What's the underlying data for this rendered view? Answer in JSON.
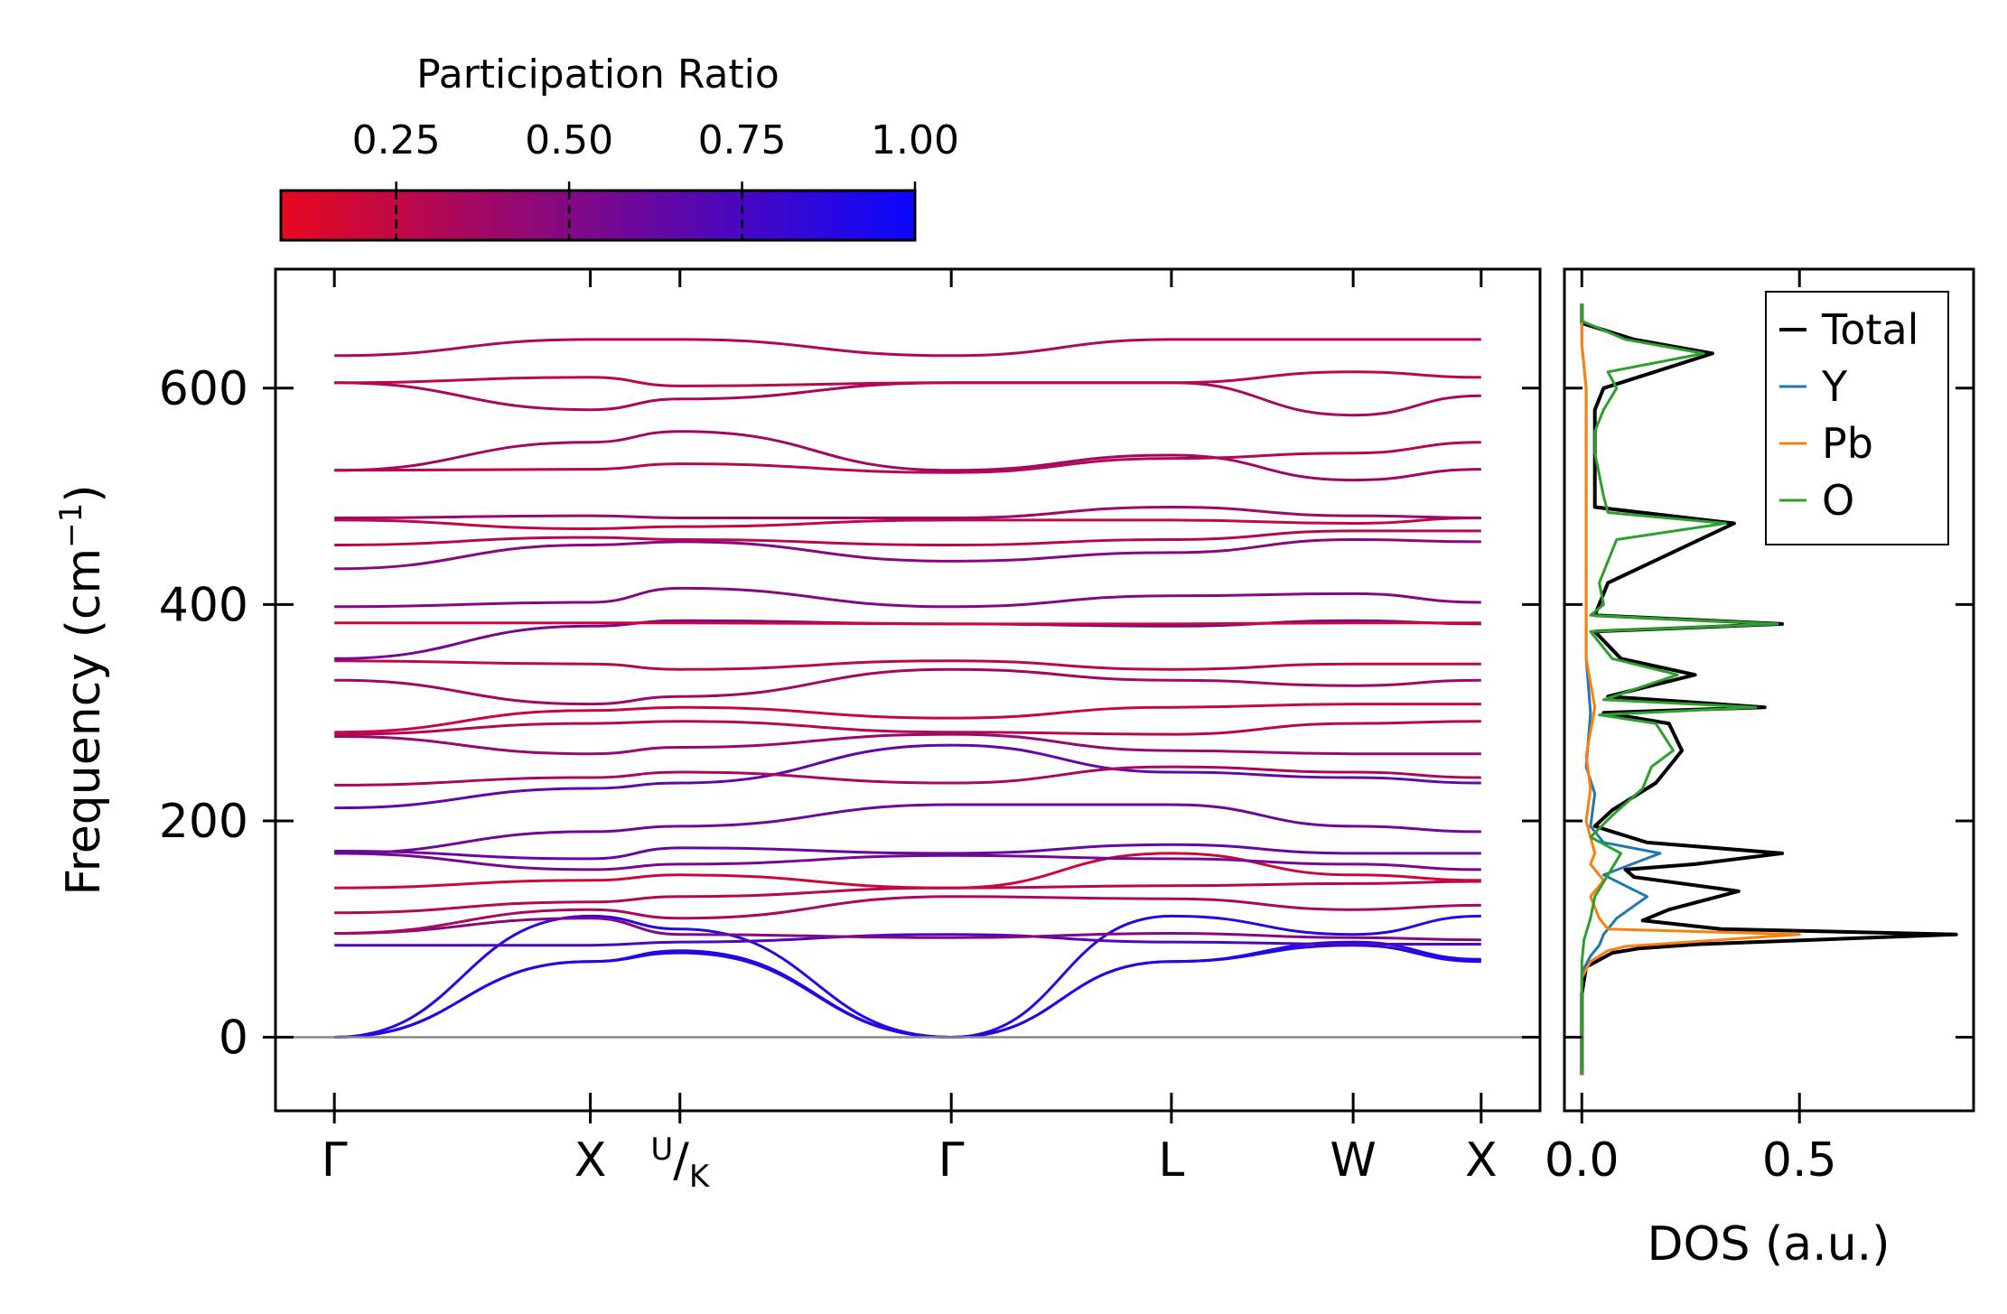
{
  "colorbar": {
    "title": "Participation Ratio",
    "ticks": [
      0.25,
      0.5,
      0.75,
      1.0
    ],
    "tick_labels": [
      "0.25",
      "0.50",
      "0.75",
      "1.00"
    ],
    "range": [
      0.0833,
      1.0
    ],
    "colors": {
      "low": "#e8081e",
      "high": "#0b07ff"
    }
  },
  "chart_data": [
    {
      "type": "line",
      "name": "phonon-band-structure",
      "ylabel": "Frequency (cm",
      "ylabel_sup": "−1",
      "ylabel_close": ")",
      "ylim": [
        -68,
        710
      ],
      "yticks": [
        0,
        200,
        400,
        600
      ],
      "ytick_labels": [
        "0",
        "200",
        "400",
        "600"
      ],
      "path_labels": [
        "Γ",
        "X",
        "U/K",
        "Γ",
        "L",
        "W",
        "X"
      ],
      "path_positions": [
        0,
        1,
        1.35,
        2.41,
        3.27,
        3.98,
        4.48
      ],
      "xlim": [
        -0.23,
        4.71
      ],
      "zero_line": 0,
      "branches": [
        {
          "freq": [
            0,
            70,
            78,
            0,
            70,
            85,
            70
          ],
          "pr": 0.9
        },
        {
          "freq": [
            0,
            70,
            80,
            0,
            70,
            88,
            72
          ],
          "pr": 0.9
        },
        {
          "freq": [
            0,
            112,
            100,
            0,
            112,
            95,
            112
          ],
          "pr": 0.88
        },
        {
          "freq": [
            85,
            85,
            88,
            95,
            88,
            86,
            86
          ],
          "pr": 0.72
        },
        {
          "freq": [
            96,
            110,
            95,
            92,
            96,
            92,
            90
          ],
          "pr": 0.5
        },
        {
          "freq": [
            96,
            118,
            110,
            130,
            128,
            118,
            122
          ],
          "pr": 0.35
        },
        {
          "freq": [
            115,
            125,
            130,
            138,
            140,
            142,
            144
          ],
          "pr": 0.3
        },
        {
          "freq": [
            138,
            145,
            150,
            138,
            170,
            150,
            145
          ],
          "pr": 0.2
        },
        {
          "freq": [
            170,
            155,
            160,
            168,
            165,
            160,
            155
          ],
          "pr": 0.55
        },
        {
          "freq": [
            172,
            165,
            175,
            170,
            178,
            170,
            170
          ],
          "pr": 0.62
        },
        {
          "freq": [
            170,
            190,
            195,
            215,
            215,
            195,
            190
          ],
          "pr": 0.58
        },
        {
          "freq": [
            212,
            230,
            235,
            270,
            245,
            240,
            235
          ],
          "pr": 0.65
        },
        {
          "freq": [
            233,
            240,
            245,
            235,
            250,
            245,
            240
          ],
          "pr": 0.35
        },
        {
          "freq": [
            278,
            262,
            268,
            280,
            265,
            262,
            262
          ],
          "pr": 0.42
        },
        {
          "freq": [
            280,
            290,
            292,
            282,
            280,
            290,
            292
          ],
          "pr": 0.3
        },
        {
          "freq": [
            282,
            302,
            305,
            295,
            305,
            308,
            308
          ],
          "pr": 0.22
        },
        {
          "freq": [
            330,
            308,
            315,
            340,
            330,
            325,
            330
          ],
          "pr": 0.38
        },
        {
          "freq": [
            348,
            345,
            340,
            348,
            340,
            345,
            345
          ],
          "pr": 0.28
        },
        {
          "freq": [
            350,
            380,
            385,
            382,
            380,
            385,
            382
          ],
          "pr": 0.55
        },
        {
          "freq": [
            383,
            383,
            383,
            382,
            382,
            383,
            383
          ],
          "pr": 0.2
        },
        {
          "freq": [
            398,
            402,
            415,
            398,
            408,
            410,
            402
          ],
          "pr": 0.5
        },
        {
          "freq": [
            433,
            455,
            458,
            440,
            448,
            460,
            458
          ],
          "pr": 0.48
        },
        {
          "freq": [
            455,
            462,
            460,
            455,
            460,
            468,
            468
          ],
          "pr": 0.3
        },
        {
          "freq": [
            478,
            470,
            472,
            478,
            478,
            475,
            480
          ],
          "pr": 0.25
        },
        {
          "freq": [
            480,
            482,
            480,
            480,
            490,
            482,
            480
          ],
          "pr": 0.4
        },
        {
          "freq": [
            524,
            550,
            560,
            524,
            538,
            515,
            525
          ],
          "pr": 0.38
        },
        {
          "freq": [
            524,
            525,
            530,
            522,
            535,
            540,
            550
          ],
          "pr": 0.3
        },
        {
          "freq": [
            605,
            580,
            590,
            605,
            605,
            575,
            593
          ],
          "pr": 0.35
        },
        {
          "freq": [
            605,
            610,
            602,
            605,
            605,
            615,
            610
          ],
          "pr": 0.28
        },
        {
          "freq": [
            630,
            645,
            645,
            630,
            645,
            645,
            645
          ],
          "pr": 0.33
        }
      ]
    },
    {
      "type": "line",
      "name": "density-of-states",
      "xlabel": "DOS (a.u.)",
      "xlim": [
        -0.04,
        0.9
      ],
      "xticks": [
        0.0,
        0.5
      ],
      "xtick_labels": [
        "0.0",
        "0.5"
      ],
      "ylim": [
        -68,
        710
      ],
      "legend_position": "top-right",
      "series": [
        {
          "name": "Total",
          "color": "#000000",
          "points": [
            [
              0,
              -35
            ],
            [
              0,
              40
            ],
            [
              0.01,
              65
            ],
            [
              0.07,
              78
            ],
            [
              0.13,
              82
            ],
            [
              0.27,
              86
            ],
            [
              0.86,
              95
            ],
            [
              0.32,
              100
            ],
            [
              0.14,
              108
            ],
            [
              0.2,
              118
            ],
            [
              0.36,
              135
            ],
            [
              0.12,
              148
            ],
            [
              0.1,
              155
            ],
            [
              0.26,
              160
            ],
            [
              0.46,
              170
            ],
            [
              0.15,
              180
            ],
            [
              0.03,
              195
            ],
            [
              0.07,
              210
            ],
            [
              0.17,
              235
            ],
            [
              0.2,
              250
            ],
            [
              0.23,
              265
            ],
            [
              0.2,
              290
            ],
            [
              0.05,
              300
            ],
            [
              0.42,
              305
            ],
            [
              0.06,
              315
            ],
            [
              0.26,
              335
            ],
            [
              0.09,
              350
            ],
            [
              0.03,
              375
            ],
            [
              0.46,
              382
            ],
            [
              0.03,
              390
            ],
            [
              0.06,
              420
            ],
            [
              0.35,
              475
            ],
            [
              0.03,
              490
            ],
            [
              0.03,
              580
            ],
            [
              0.05,
              600
            ],
            [
              0.3,
              632
            ],
            [
              0.12,
              645
            ],
            [
              0,
              660
            ],
            [
              0,
              678
            ]
          ]
        },
        {
          "name": "Y",
          "color": "#1f77b4",
          "points": [
            [
              0,
              -35
            ],
            [
              0,
              60
            ],
            [
              0.02,
              75
            ],
            [
              0.04,
              85
            ],
            [
              0.05,
              95
            ],
            [
              0.08,
              110
            ],
            [
              0.15,
              130
            ],
            [
              0.1,
              140
            ],
            [
              0.05,
              150
            ],
            [
              0.18,
              170
            ],
            [
              0.05,
              180
            ],
            [
              0.02,
              195
            ],
            [
              0.03,
              225
            ],
            [
              0.01,
              250
            ],
            [
              0.02,
              300
            ],
            [
              0.01,
              350
            ],
            [
              0.01,
              450
            ],
            [
              0.01,
              600
            ],
            [
              0,
              640
            ],
            [
              0,
              678
            ]
          ]
        },
        {
          "name": "Pb",
          "color": "#ff7f0e",
          "points": [
            [
              0,
              -35
            ],
            [
              0,
              55
            ],
            [
              0.02,
              70
            ],
            [
              0.06,
              80
            ],
            [
              0.1,
              84
            ],
            [
              0.5,
              95
            ],
            [
              0.06,
              100
            ],
            [
              0.04,
              110
            ],
            [
              0.02,
              130
            ],
            [
              0.05,
              145
            ],
            [
              0.02,
              160
            ],
            [
              0.03,
              170
            ],
            [
              0.01,
              200
            ],
            [
              0.02,
              230
            ],
            [
              0.01,
              260
            ],
            [
              0.03,
              305
            ],
            [
              0.01,
              350
            ],
            [
              0.01,
              450
            ],
            [
              0.01,
              600
            ],
            [
              0,
              640
            ],
            [
              0,
              678
            ]
          ]
        },
        {
          "name": "O",
          "color": "#2ca02c",
          "points": [
            [
              0,
              -35
            ],
            [
              0,
              70
            ],
            [
              0.005,
              90
            ],
            [
              0.02,
              110
            ],
            [
              0.03,
              130
            ],
            [
              0.06,
              150
            ],
            [
              0.09,
              170
            ],
            [
              0.02,
              185
            ],
            [
              0.07,
              205
            ],
            [
              0.14,
              230
            ],
            [
              0.16,
              250
            ],
            [
              0.21,
              265
            ],
            [
              0.17,
              290
            ],
            [
              0.04,
              298
            ],
            [
              0.4,
              305
            ],
            [
              0.05,
              312
            ],
            [
              0.22,
              335
            ],
            [
              0.07,
              350
            ],
            [
              0.02,
              375
            ],
            [
              0.45,
              382
            ],
            [
              0.02,
              390
            ],
            [
              0.05,
              400
            ],
            [
              0.04,
              420
            ],
            [
              0.06,
              440
            ],
            [
              0.08,
              460
            ],
            [
              0.33,
              475
            ],
            [
              0.06,
              485
            ],
            [
              0.05,
              500
            ],
            [
              0.03,
              540
            ],
            [
              0.03,
              560
            ],
            [
              0.05,
              580
            ],
            [
              0.08,
              600
            ],
            [
              0.06,
              615
            ],
            [
              0.28,
              632
            ],
            [
              0.1,
              645
            ],
            [
              0,
              662
            ],
            [
              0,
              678
            ]
          ]
        }
      ]
    }
  ]
}
